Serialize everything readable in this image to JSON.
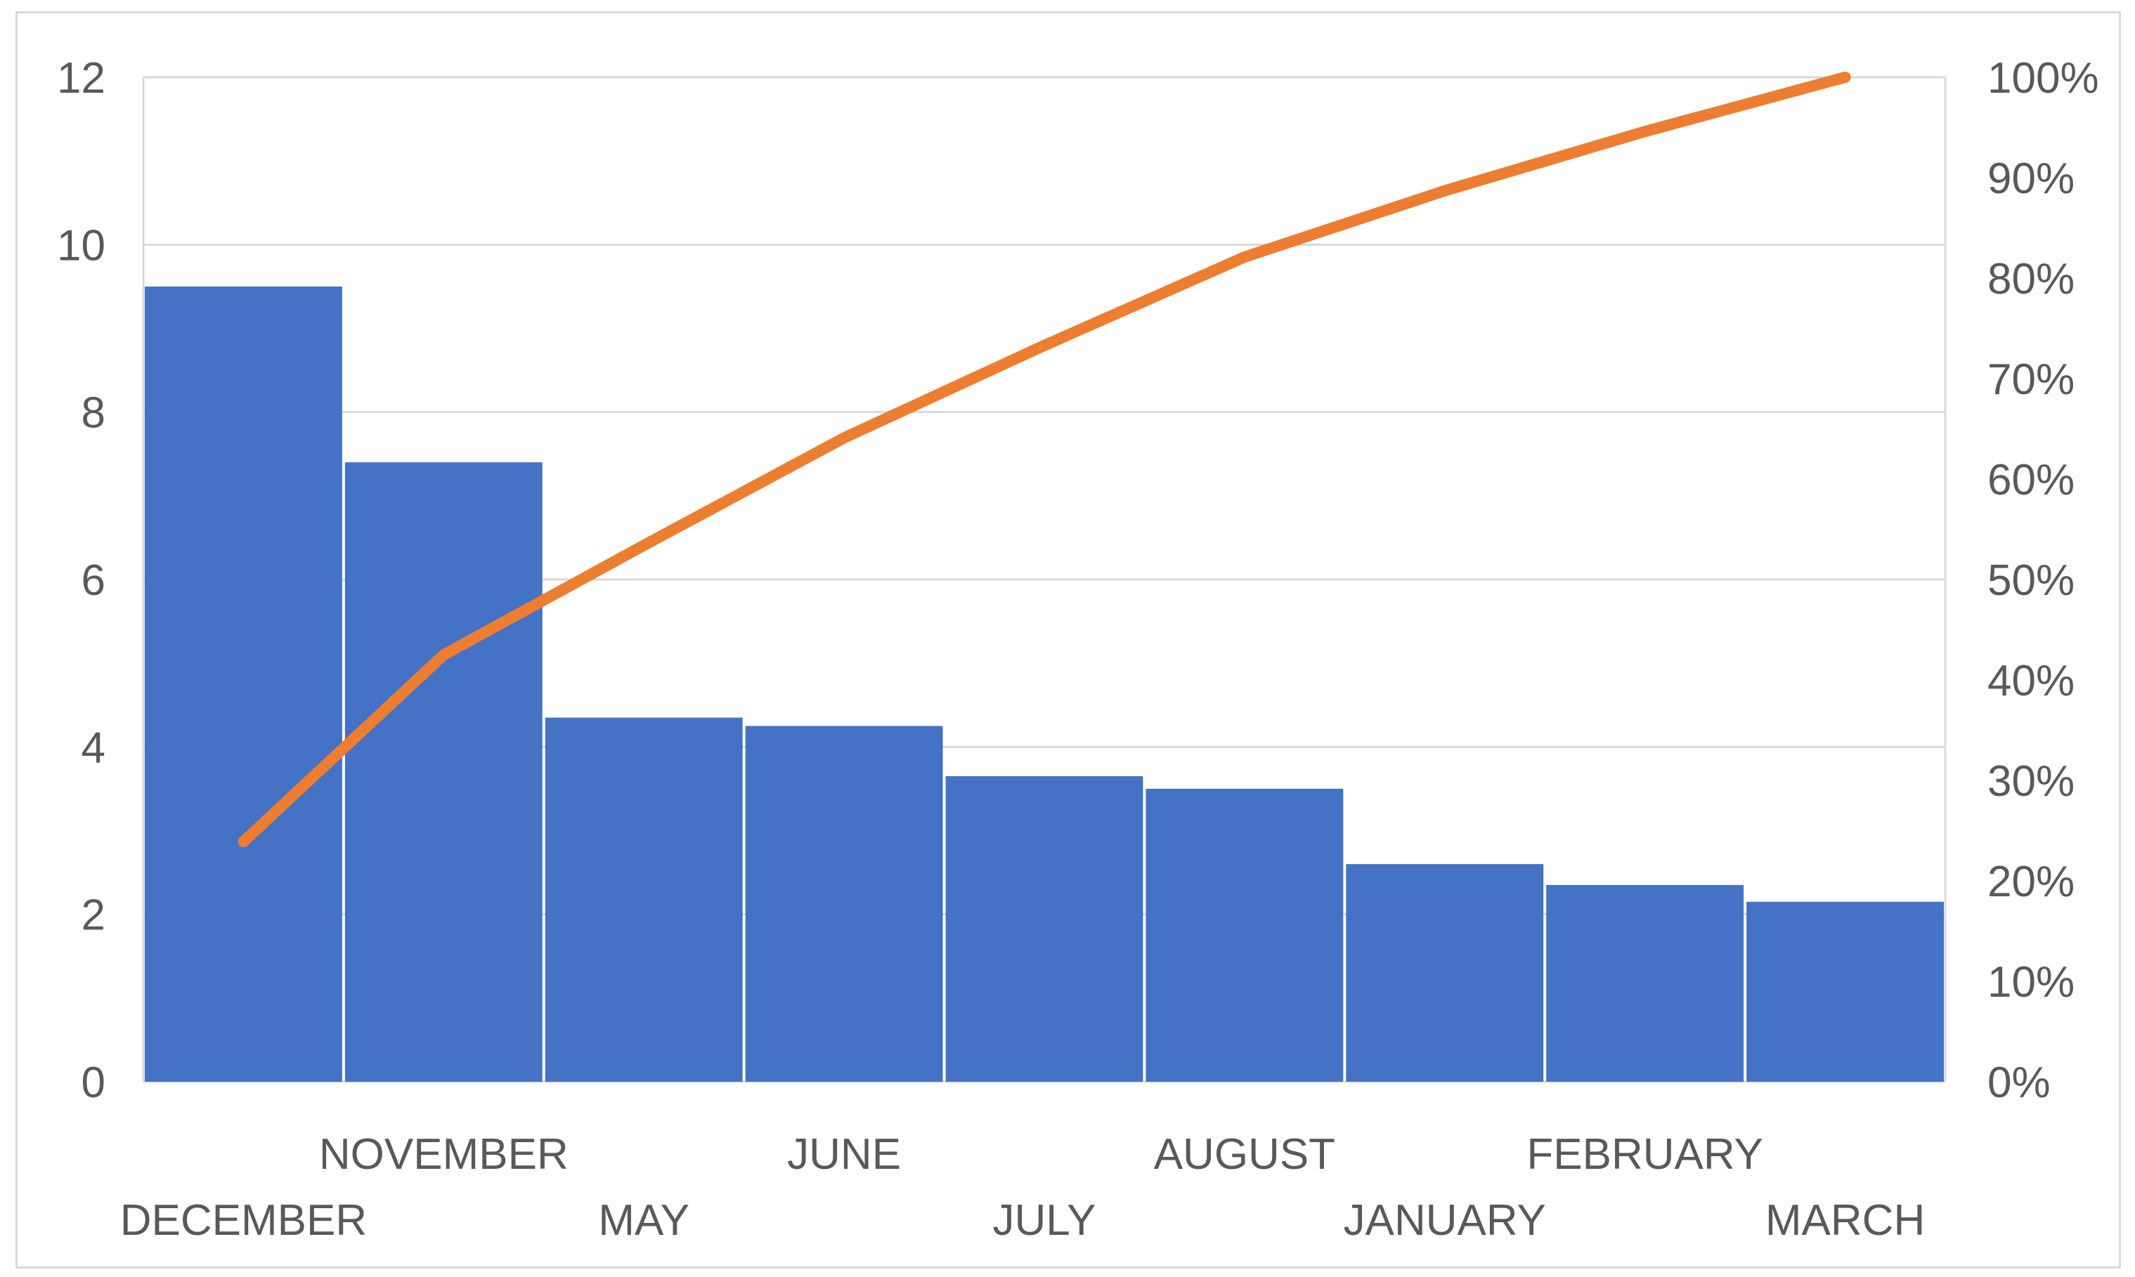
{
  "chart_data": {
    "type": "bar",
    "subtype": "pareto",
    "categories": [
      "DECEMBER",
      "NOVEMBER",
      "MAY",
      "JUNE",
      "JULY",
      "AUGUST",
      "JANUARY",
      "FEBRUARY",
      "MARCH"
    ],
    "series": [
      {
        "kind": "bar",
        "axis": "left",
        "values": [
          9.5,
          7.4,
          4.35,
          4.25,
          3.65,
          3.5,
          2.6,
          2.35,
          2.15
        ]
      },
      {
        "kind": "line",
        "axis": "right",
        "values": [
          23.9,
          42.5,
          53.4,
          64.1,
          73.3,
          82.1,
          88.7,
          94.6,
          100
        ]
      }
    ],
    "ylim": [
      0,
      12
    ],
    "yticks": [
      0,
      2,
      4,
      6,
      8,
      10,
      12
    ],
    "y2lim": [
      0,
      100
    ],
    "y2ticks": [
      0,
      10,
      20,
      30,
      40,
      50,
      60,
      70,
      80,
      90,
      100
    ],
    "y2_tick_suffix": "%",
    "grid": true,
    "legend": "none",
    "colors": {
      "bar": "#4472c4",
      "line": "#ed7d31",
      "grid": "#d9d9d9",
      "text": "#595959"
    }
  }
}
